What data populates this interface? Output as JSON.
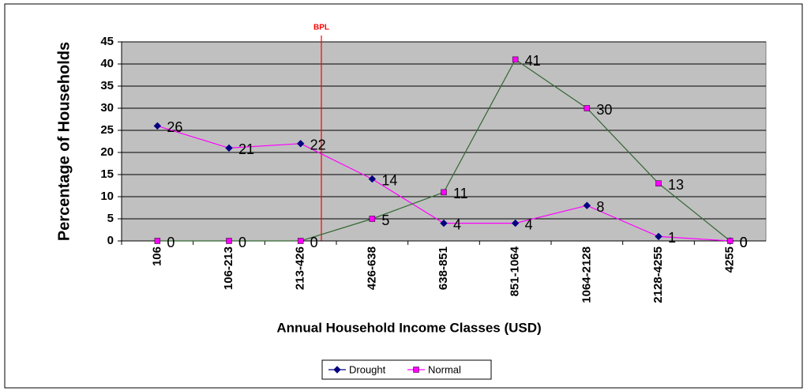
{
  "chart_data": {
    "type": "line",
    "annotation": "BPL",
    "x_label": "Annual Household Income Classes (USD)",
    "y_label": "Percentage of Households",
    "categories": [
      "106",
      "106-213",
      "213-426",
      "426-638",
      "638-851",
      "851-1064",
      "1064-2128",
      "2128-4255",
      "4255"
    ],
    "series": [
      {
        "name": "Drought",
        "color": "#000080",
        "line_color": "#ff00ff",
        "marker": "diamond",
        "values": [
          26,
          21,
          22,
          14,
          4,
          4,
          8,
          1,
          0
        ]
      },
      {
        "name": "Normal",
        "color": "#ff00ff",
        "line_color": "#336633",
        "marker": "square",
        "values": [
          0,
          0,
          0,
          5,
          11,
          41,
          30,
          13,
          0
        ]
      }
    ],
    "ylim": [
      0,
      45
    ],
    "yticks": [
      0,
      5,
      10,
      15,
      20,
      25,
      30,
      35,
      40,
      45
    ],
    "grid": true
  }
}
